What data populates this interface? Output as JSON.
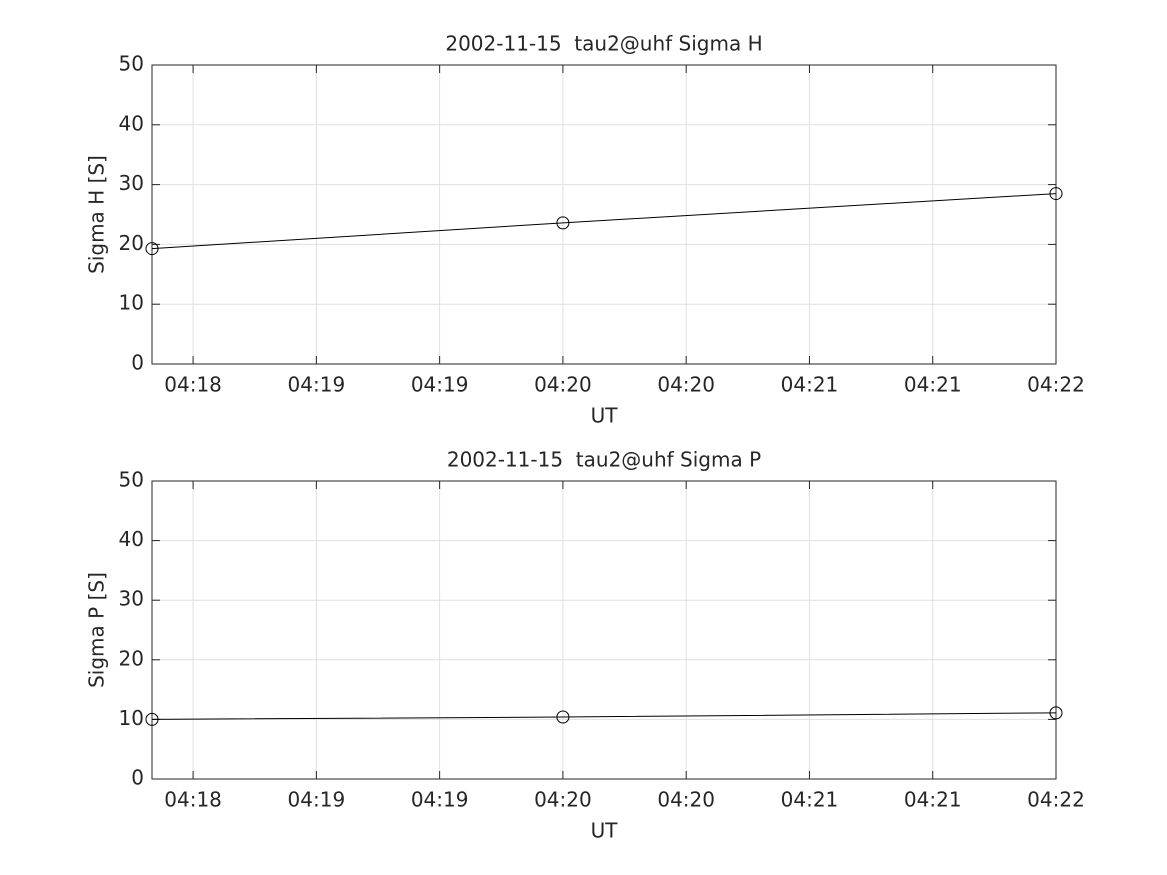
{
  "chart_data": [
    {
      "type": "line",
      "title": "2002-11-15  tau2@uhf Sigma H",
      "xlabel": "UT",
      "ylabel": "Sigma H [S]",
      "x": [
        "04:18:20",
        "04:20:00",
        "04:22:00"
      ],
      "series": [
        {
          "color": "#000000",
          "values": [
            19.3,
            23.6,
            28.5
          ]
        }
      ],
      "xlim": [
        "04:18:20",
        "04:22:00"
      ],
      "xticks": [
        {
          "value": "04:18:30",
          "label": "04:18"
        },
        {
          "value": "04:19:00",
          "label": "04:19"
        },
        {
          "value": "04:19:30",
          "label": "04:19"
        },
        {
          "value": "04:20:00",
          "label": "04:20"
        },
        {
          "value": "04:20:30",
          "label": "04:20"
        },
        {
          "value": "04:21:00",
          "label": "04:21"
        },
        {
          "value": "04:21:30",
          "label": "04:21"
        },
        {
          "value": "04:22:00",
          "label": "04:22"
        }
      ],
      "ylim": [
        0,
        50
      ],
      "yticks": [
        0,
        10,
        20,
        30,
        40,
        50
      ],
      "grid": true,
      "marker": "circle"
    },
    {
      "type": "line",
      "title": "2002-11-15  tau2@uhf Sigma P",
      "xlabel": "UT",
      "ylabel": "Sigma P [S]",
      "x": [
        "04:18:20",
        "04:20:00",
        "04:22:00"
      ],
      "series": [
        {
          "color": "#000000",
          "values": [
            10.0,
            10.4,
            11.1
          ]
        }
      ],
      "xlim": [
        "04:18:20",
        "04:22:00"
      ],
      "xticks": [
        {
          "value": "04:18:30",
          "label": "04:18"
        },
        {
          "value": "04:19:00",
          "label": "04:19"
        },
        {
          "value": "04:19:30",
          "label": "04:19"
        },
        {
          "value": "04:20:00",
          "label": "04:20"
        },
        {
          "value": "04:20:30",
          "label": "04:20"
        },
        {
          "value": "04:21:00",
          "label": "04:21"
        },
        {
          "value": "04:21:30",
          "label": "04:21"
        },
        {
          "value": "04:22:00",
          "label": "04:22"
        }
      ],
      "ylim": [
        0,
        50
      ],
      "yticks": [
        0,
        10,
        20,
        30,
        40,
        50
      ],
      "grid": true,
      "marker": "circle"
    }
  ]
}
